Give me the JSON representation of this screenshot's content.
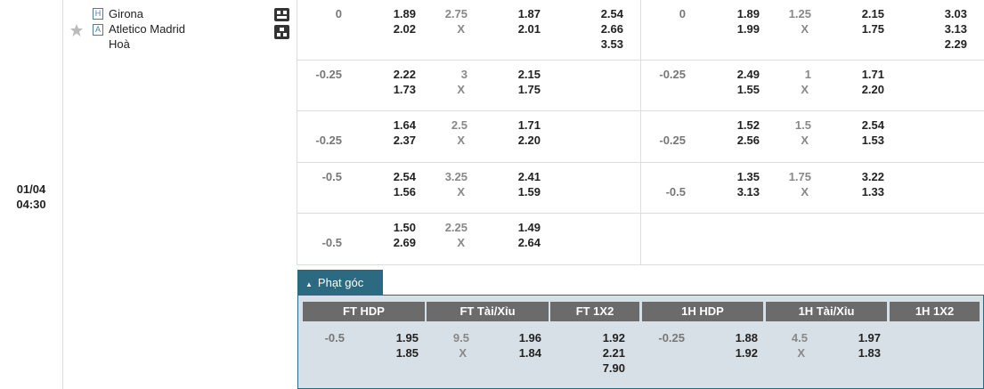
{
  "match": {
    "date": "01/04",
    "time": "04:30",
    "home_badge": "H",
    "home": "Girona",
    "away_badge": "A",
    "away": "Atletico Madrid",
    "draw": "Hoà"
  },
  "rows": [
    {
      "ft": {
        "hdp": {
          "home": "0"
        },
        "hdp_odds": [
          "1.89",
          "2.02"
        ],
        "ou_line": "2.75",
        "ou_x": "X",
        "ou_odds": [
          "1.87",
          "2.01"
        ],
        "x12": [
          "2.54",
          "2.66",
          "3.53"
        ]
      },
      "h1": {
        "hdp": {
          "home": "0"
        },
        "hdp_odds": [
          "1.89",
          "1.99"
        ],
        "ou_line": "1.25",
        "ou_x": "X",
        "ou_odds": [
          "2.15",
          "1.75"
        ],
        "x12": [
          "3.03",
          "3.13",
          "2.29"
        ]
      }
    },
    {
      "ft": {
        "hdp": {
          "home": "-0.25"
        },
        "hdp_odds": [
          "2.22",
          "1.73"
        ],
        "ou_line": "3",
        "ou_x": "X",
        "ou_odds": [
          "2.15",
          "1.75"
        ]
      },
      "h1": {
        "hdp": {
          "home": "-0.25"
        },
        "hdp_odds": [
          "2.49",
          "1.55"
        ],
        "ou_line": "1",
        "ou_x": "X",
        "ou_odds": [
          "1.71",
          "2.20"
        ]
      }
    },
    {
      "ft": {
        "hdp": {
          "away": "-0.25"
        },
        "hdp_odds": [
          "1.64",
          "2.37"
        ],
        "ou_line": "2.5",
        "ou_x": "X",
        "ou_odds": [
          "1.71",
          "2.20"
        ]
      },
      "h1": {
        "hdp": {
          "away": "-0.25"
        },
        "hdp_odds": [
          "1.52",
          "2.56"
        ],
        "ou_line": "1.5",
        "ou_x": "X",
        "ou_odds": [
          "2.54",
          "1.53"
        ]
      }
    },
    {
      "ft": {
        "hdp": {
          "home": "-0.5"
        },
        "hdp_odds": [
          "2.54",
          "1.56"
        ],
        "ou_line": "3.25",
        "ou_x": "X",
        "ou_odds": [
          "2.41",
          "1.59"
        ]
      },
      "h1": {
        "hdp": {
          "away": "-0.5"
        },
        "hdp_odds": [
          "1.35",
          "3.13"
        ],
        "ou_line": "1.75",
        "ou_x": "X",
        "ou_odds": [
          "3.22",
          "1.33"
        ]
      }
    },
    {
      "ft": {
        "hdp": {
          "away": "-0.5"
        },
        "hdp_odds": [
          "1.50",
          "2.69"
        ],
        "ou_line": "2.25",
        "ou_x": "X",
        "ou_odds": [
          "1.49",
          "2.64"
        ]
      }
    }
  ],
  "corners": {
    "tab": "Phạt góc",
    "headers": [
      "FT HDP",
      "FT Tài/Xỉu",
      "FT 1X2",
      "1H HDP",
      "1H Tài/Xỉu",
      "1H 1X2"
    ],
    "ft": {
      "hdp": {
        "home": "-0.5"
      },
      "hdp_odds": [
        "1.95",
        "1.85"
      ],
      "ou_line": "9.5",
      "ou_x": "X",
      "ou_odds": [
        "1.96",
        "1.84"
      ],
      "x12": [
        "1.92",
        "2.21",
        "7.90"
      ]
    },
    "h1": {
      "hdp": {
        "home": "-0.25"
      },
      "hdp_odds": [
        "1.88",
        "1.92"
      ],
      "ou_line": "4.5",
      "ou_x": "X",
      "ou_odds": [
        "1.97",
        "1.83"
      ]
    }
  }
}
